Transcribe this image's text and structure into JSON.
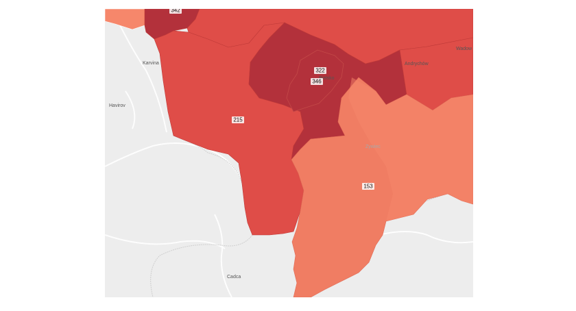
{
  "colors": {
    "background": "#ededed",
    "level_darkest": "#b3313b",
    "level_dark": "#df4d48",
    "level_medium": "#f07d63",
    "level_light": "#f6876b",
    "border": "#bf3a38"
  },
  "places": {
    "karvina": "Karvina",
    "havirov": "Havirov",
    "cadca": "Cadca",
    "zywiec": "Zywiec",
    "andrychow": "Andrychów",
    "wadowice": "Wadow",
    "bielsko": "Bielsko"
  },
  "regions": {
    "top_left_value": "342",
    "bielsko_city_value": "322",
    "bielsko_county_value": "346",
    "cieszyn_value": "215",
    "zywiec_value": "153"
  }
}
